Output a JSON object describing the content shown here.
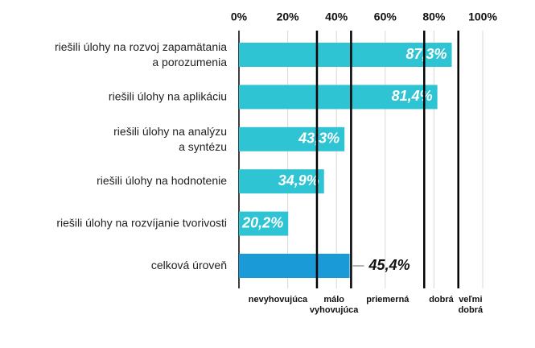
{
  "chart_data": {
    "type": "bar",
    "orientation": "horizontal",
    "categories": [
      "riešili úlohy na rozvoj zapamätania\na porozumenia",
      "riešili úlohy na aplikáciu",
      "riešili úlohy na analýzu\na syntézu",
      "riešili úlohy na hodnotenie",
      "riešili úlohy na rozvíjanie tvorivosti",
      "celková úroveň"
    ],
    "values": [
      87.3,
      81.4,
      43.3,
      34.9,
      20.2,
      45.4
    ],
    "value_labels": [
      "87,3%",
      "81,4%",
      "43,3%",
      "34,9%",
      "20,2%",
      "45,4%"
    ],
    "colors": [
      "#2ec4d3",
      "#2ec4d3",
      "#2ec4d3",
      "#2ec4d3",
      "#2ec4d3",
      "#1a9ad6"
    ],
    "xlim": [
      0,
      100
    ],
    "xticks": [
      {
        "value": 0,
        "label": "0%"
      },
      {
        "value": 20,
        "label": "20%"
      },
      {
        "value": 40,
        "label": "40%"
      },
      {
        "value": 60,
        "label": "60%"
      },
      {
        "value": 80,
        "label": "80%"
      },
      {
        "value": 100,
        "label": "100%"
      }
    ],
    "grid": true,
    "thresholds": [
      32,
      46,
      76,
      90
    ],
    "band_labels": [
      "nevyhovujúca",
      "málo\nvyhovujúca",
      "priemerná",
      "dobrá",
      "veľmi\ndobrá"
    ]
  }
}
